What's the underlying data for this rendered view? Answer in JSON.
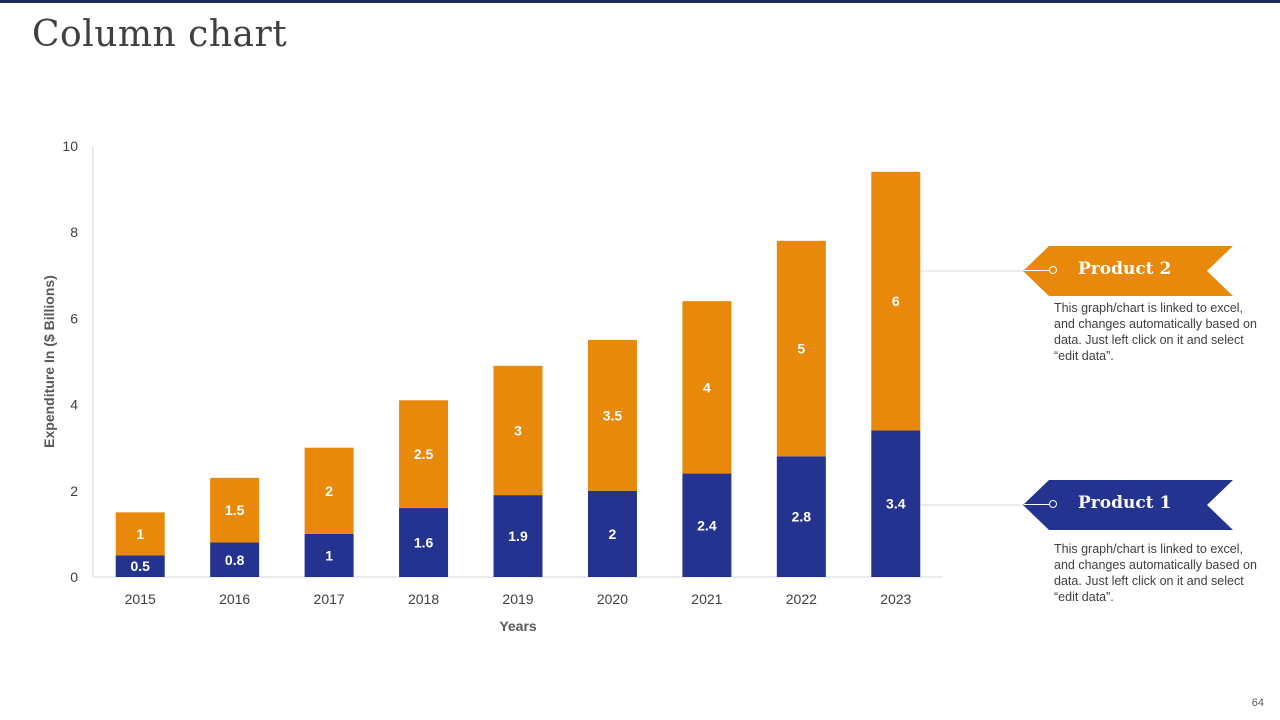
{
  "slide": {
    "title": "Column chart",
    "page_number": "64"
  },
  "callouts": [
    {
      "label": "Product 2",
      "color": "#e8890c",
      "text": "This graph/chart is linked to excel, and changes automatically based on data. Just left click on it and select “edit data”."
    },
    {
      "label": "Product 1",
      "color": "#243290",
      "text": "This graph/chart is linked to excel, and changes automatically based on data. Just left click on it and select “edit data”."
    }
  ],
  "chart_data": {
    "type": "bar",
    "stacked": true,
    "categories": [
      "2015",
      "2016",
      "2017",
      "2018",
      "2019",
      "2020",
      "2021",
      "2022",
      "2023"
    ],
    "series": [
      {
        "name": "Product 1",
        "color": "#243290",
        "values": [
          0.5,
          0.8,
          1,
          1.6,
          1.9,
          2,
          2.4,
          2.8,
          3.4
        ]
      },
      {
        "name": "Product 2",
        "color": "#e8890c",
        "values": [
          1,
          1.5,
          2,
          2.5,
          3,
          3.5,
          4,
          5,
          6
        ]
      }
    ],
    "xlabel": "Years",
    "ylabel": "Expenditure In ($ Billions)",
    "ylim": [
      0,
      10
    ],
    "yticks": [
      0,
      2,
      4,
      6,
      8,
      10
    ],
    "grid": false,
    "data_labels": true
  }
}
